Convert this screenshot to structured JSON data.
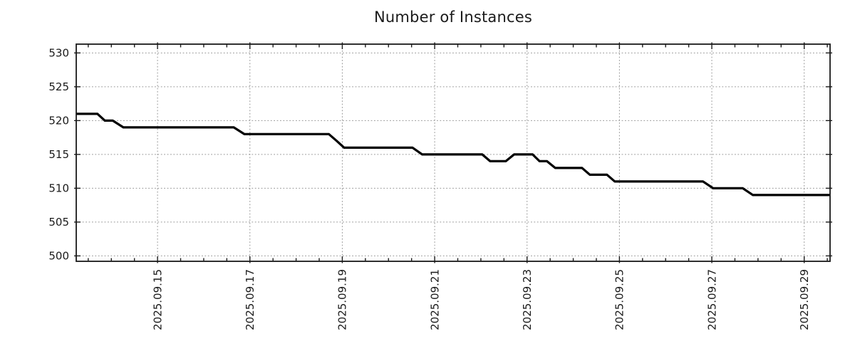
{
  "chart_data": {
    "type": "line",
    "title": "Number of Instances",
    "xlabel": "",
    "ylabel": "",
    "x_unit": "day of September 2025 (decimal day-of-month)",
    "x": [
      13.24,
      13.7,
      13.86,
      14.03,
      14.26,
      16.65,
      16.88,
      18.71,
      18.88,
      19.04,
      20.52,
      20.73,
      22.03,
      22.2,
      22.54,
      22.72,
      23.12,
      23.27,
      23.43,
      23.61,
      24.19,
      24.36,
      24.73,
      24.9,
      26.81,
      27.03,
      27.67,
      27.89,
      29.56
    ],
    "y": [
      521,
      521,
      520,
      520,
      519,
      519,
      518,
      518,
      517,
      516,
      516,
      515,
      515,
      514,
      514,
      515,
      515,
      514,
      514,
      513,
      513,
      512,
      512,
      511,
      511,
      510,
      510,
      509,
      509
    ],
    "xlim": [
      13.24,
      29.56
    ],
    "ylim": [
      499.2,
      531.3
    ],
    "xticks": {
      "positions": [
        15,
        17,
        19,
        21,
        23,
        25,
        27,
        29
      ],
      "labels": [
        "2025.09.15",
        "2025.09.17",
        "2025.09.19",
        "2025.09.21",
        "2025.09.23",
        "2025.09.25",
        "2025.09.27",
        "2025.09.29"
      ]
    },
    "yticks": [
      500,
      505,
      510,
      515,
      520,
      525,
      530
    ],
    "minor_xtick_interval": 0.5,
    "grid": true,
    "grid_style": "dotted",
    "legend": null,
    "line_width": 3.2,
    "colors": {
      "line": "#000000",
      "grid": "#969696",
      "axis": "#1a1a1a",
      "text": "#1a1a1a",
      "background": "#ffffff"
    }
  }
}
